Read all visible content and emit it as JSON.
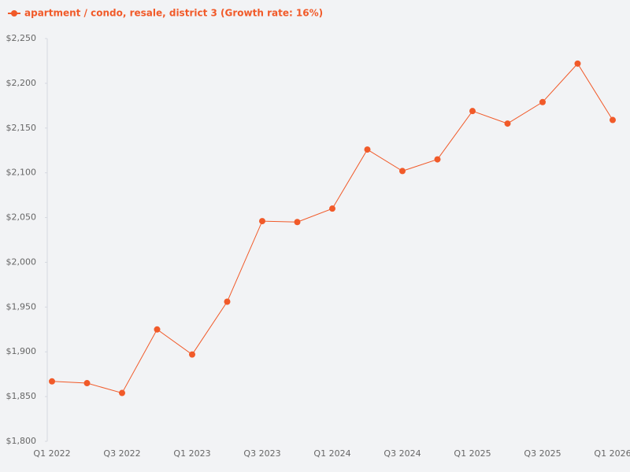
{
  "chart_data": {
    "type": "line",
    "categories": [
      "Q1 2022",
      null,
      "Q3 2022",
      null,
      "Q1 2023",
      null,
      "Q3 2023",
      null,
      "Q1 2024",
      null,
      "Q3 2024",
      null,
      "Q1 2025",
      null,
      "Q3 2025",
      null,
      "Q1 2026"
    ],
    "series": [
      {
        "name": "apartment / condo, resale, district 3 (Growth rate: 16%)",
        "color": "#f15a29",
        "values": [
          1867,
          1865,
          1854,
          1925,
          1897,
          1956,
          2046,
          2045,
          2060,
          2126,
          2102,
          2115,
          2169,
          2155,
          2179,
          2222,
          2159
        ]
      }
    ],
    "ylim": [
      1800,
      2250
    ],
    "yticks": [
      {
        "value": 1800,
        "label": "$1,800"
      },
      {
        "value": 1850,
        "label": "$1,850"
      },
      {
        "value": 1900,
        "label": "$1,900"
      },
      {
        "value": 1950,
        "label": "$1,950"
      },
      {
        "value": 2000,
        "label": "$2,000"
      },
      {
        "value": 2050,
        "label": "$2,050"
      },
      {
        "value": 2100,
        "label": "$2,100"
      },
      {
        "value": 2150,
        "label": "$2,150"
      },
      {
        "value": 2200,
        "label": "$2,200"
      },
      {
        "value": 2250,
        "label": "$2,250"
      }
    ],
    "legend": "top-left"
  }
}
